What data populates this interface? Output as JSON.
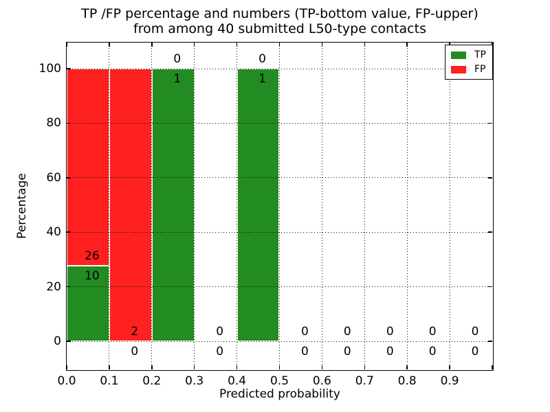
{
  "figure": {
    "title_line1": "TP /FP percentage and numbers (TP-bottom value, FP-upper)",
    "title_line2": "from among 40 submitted L50-type contacts",
    "xlabel": "Predicted probability",
    "ylabel": "Percentage"
  },
  "legend": {
    "items": [
      {
        "label": "TP",
        "color": "#228B22"
      },
      {
        "label": "FP",
        "color": "#FF2020"
      }
    ]
  },
  "chart_data": {
    "type": "bar",
    "stacked": true,
    "title": "TP /FP percentage and numbers (TP-bottom value, FP-upper)\nfrom among 40 submitted L50-type contacts",
    "xlabel": "Predicted probability",
    "ylabel": "Percentage",
    "xlim": [
      0.0,
      1.0
    ],
    "ylim": [
      -10,
      110
    ],
    "grid": true,
    "grid_style": "dotted",
    "legend_position": "upper right",
    "bin_edges": [
      0.0,
      0.1,
      0.2,
      0.3,
      0.4,
      0.5,
      0.6,
      0.7,
      0.8,
      0.9,
      1.0
    ],
    "x_tick_labels": [
      "0.0",
      "0.1",
      "0.2",
      "0.3",
      "0.4",
      "0.5",
      "0.6",
      "0.7",
      "0.8",
      "0.9"
    ],
    "y_tick_values": [
      0,
      20,
      40,
      60,
      80,
      100
    ],
    "y_tick_labels": [
      "0",
      "20",
      "40",
      "60",
      "80",
      "100"
    ],
    "series": [
      {
        "name": "TP",
        "color": "#228B22",
        "counts": [
          10,
          0,
          1,
          0,
          1,
          0,
          0,
          0,
          0,
          0
        ],
        "percent": [
          27.78,
          0,
          100,
          0,
          100,
          0,
          0,
          0,
          0,
          0
        ]
      },
      {
        "name": "FP",
        "color": "#FF2020",
        "counts": [
          26,
          2,
          0,
          0,
          0,
          0,
          0,
          0,
          0,
          0
        ],
        "percent": [
          72.22,
          100,
          0,
          0,
          0,
          0,
          0,
          0,
          0,
          0
        ]
      }
    ]
  }
}
